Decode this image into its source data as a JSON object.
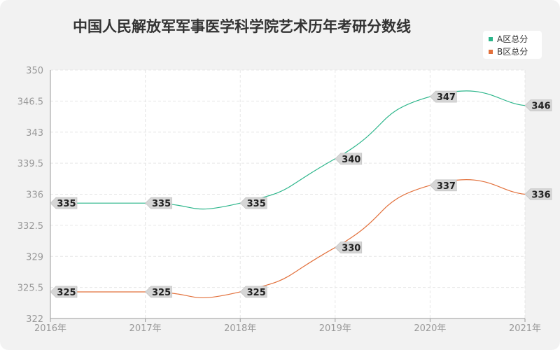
{
  "title": "中国人民解放军军事医学科学院艺术历年考研分数线",
  "colors": {
    "series_a": "#2bb58a",
    "series_b": "#e2703b"
  },
  "chart_data": {
    "type": "line",
    "title": "中国人民解放军军事医学科学院艺术历年考研分数线",
    "categories": [
      "2016年",
      "2017年",
      "2018年",
      "2019年",
      "2020年",
      "2021年"
    ],
    "series": [
      {
        "name": "A区总分",
        "values": [
          335,
          335,
          335,
          340,
          347,
          346
        ]
      },
      {
        "name": "B区总分",
        "values": [
          325,
          325,
          325,
          330,
          337,
          336
        ]
      }
    ],
    "y_ticks": [
      "350",
      "346.5",
      "343",
      "339.5",
      "336",
      "332.5",
      "329",
      "325.5",
      "322"
    ],
    "ylim": [
      322,
      350
    ],
    "grid": true,
    "legend_position": "top-right",
    "smooth": true
  }
}
